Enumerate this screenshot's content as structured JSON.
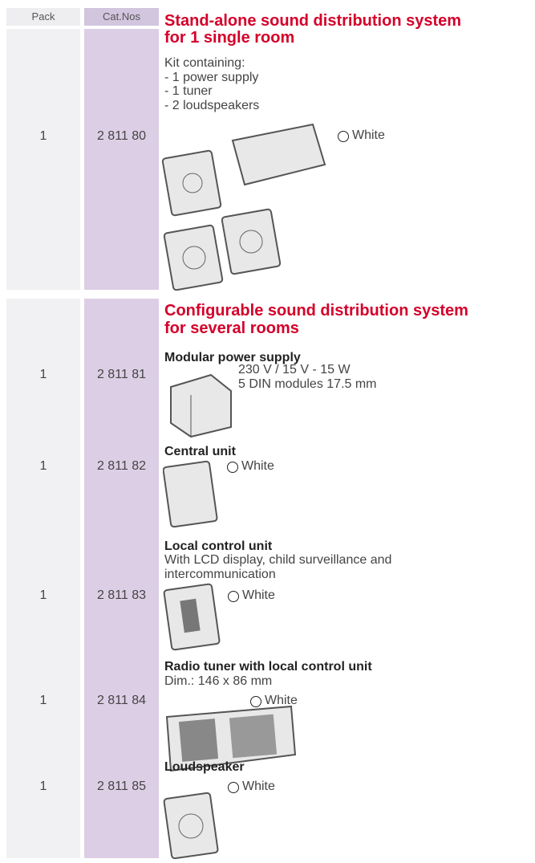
{
  "header": {
    "pack": "Pack",
    "cat_nos": "Cat.Nos"
  },
  "sections": [
    {
      "title": [
        "Stand-alone sound distribution system",
        "for 1 single room"
      ],
      "items": [
        {
          "pack": "1",
          "cat_no": "2 811 80",
          "description": [
            "Kit containing:",
            "- 1 power supply",
            "- 1 tuner",
            "- 2 loudspeakers"
          ],
          "color": "White"
        }
      ]
    },
    {
      "title": [
        "Configurable sound distribution system",
        "for several rooms"
      ],
      "items": [
        {
          "pack": "1",
          "cat_no": "2 811 81",
          "name": "Modular power supply",
          "description": [
            "230 V / 15 V - 15 W",
            "5 DIN modules 17.5 mm"
          ]
        },
        {
          "pack": "1",
          "cat_no": "2 811 82",
          "name": "Central unit",
          "color": "White"
        },
        {
          "pack": "1",
          "cat_no": "2 811 83",
          "name": "Local control unit",
          "description": [
            "With LCD display, child surveillance and",
            "intercommunication"
          ],
          "color": "White"
        },
        {
          "pack": "1",
          "cat_no": "2 811 84",
          "name": "Radio tuner with local control unit",
          "description": [
            "Dim.: 146 x 86 mm"
          ],
          "color": "White"
        },
        {
          "pack": "1",
          "cat_no": "2 811 85",
          "name": "Loudspeaker",
          "color": "White"
        }
      ]
    }
  ]
}
